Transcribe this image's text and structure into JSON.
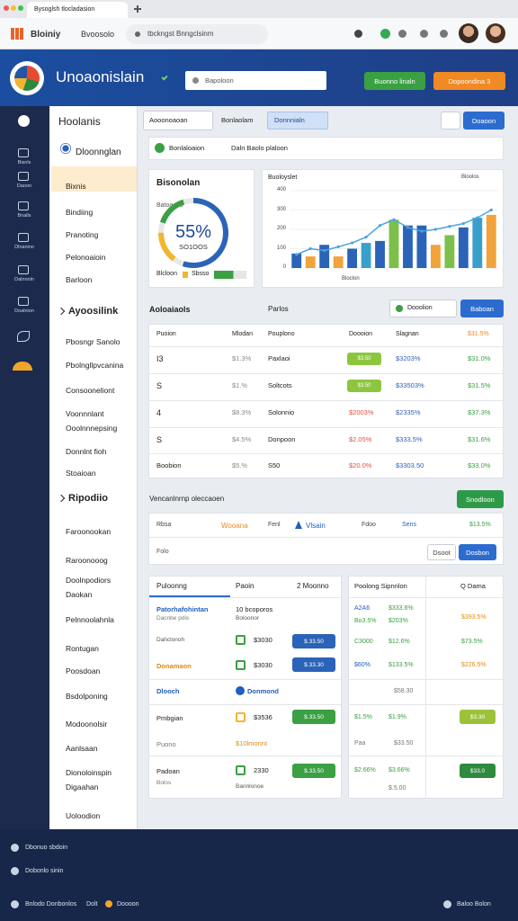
{
  "browser": {
    "tab": "Bysoglsh tlocladasion",
    "brand": "Bloiniy",
    "nav": "Bvoosolo",
    "address": "tbckngst Bnngclsinm"
  },
  "header": {
    "title": "Unoaonislain",
    "search": "Bapoloon",
    "buttons": [
      "Buonno linaln",
      "Dopoondina 3"
    ]
  },
  "rail": [
    "Bisnls",
    "Daoon",
    "Bnalls",
    "Dlnanino",
    "Dalnnnln",
    "Doalnion"
  ],
  "sidebar": {
    "groups": [
      {
        "title": "Hoolanis",
        "items": [
          "Dloonnglan",
          "Bixnis",
          "Bindiing",
          "Pranoting",
          "Pelonoaioin",
          "Barloon"
        ]
      },
      {
        "title": "Ayoosilink",
        "items": [
          "Pbosngr Sanolo",
          "Pbolngllpvcanina",
          "Consooneliont",
          "Voonnnlant Ooolnnnepsing",
          "Donnlnt fioh",
          "Stoaioan"
        ]
      },
      {
        "title": "Ripodiio",
        "items": [
          "Faroonookan",
          "Raroonooog",
          "Doolnpodiors Daokan",
          "Pelnnoolahnla",
          "Rontugan",
          "Poosdoan",
          "Bsdolponing",
          "Modoonolsir",
          "Aanlsaan",
          "Dionoloinspin Digaahan",
          "Uoloodion"
        ]
      }
    ]
  },
  "toolbar": {
    "dropdown": "Aooonoaoan",
    "tabs": [
      "Bonlaolam",
      "Donnnialn"
    ],
    "button": "Doaoon"
  },
  "notice": {
    "label": "Bonlaloaion",
    "text": "Daln Baolo plaloon"
  },
  "gauge": {
    "title": "Bisonolan",
    "label": "Batoaahs",
    "value": 55,
    "value_label": "55%",
    "sub": "SO1OOS",
    "legend": [
      "Blcloon",
      "Sbsso"
    ]
  },
  "chart": {
    "title": "Buoloyslet",
    "legend": "Bloolos",
    "x_label": "Bloclon",
    "ylim": [
      0,
      400
    ],
    "yticks": [
      0,
      100,
      200,
      300,
      400
    ],
    "bars": {
      "values": [
        75,
        60,
        120,
        60,
        100,
        130,
        140,
        250,
        220,
        220,
        120,
        170,
        210,
        260,
        275
      ],
      "colors": [
        "#2b63b8",
        "#f2a33a",
        "#2b63b8",
        "#f2a33a",
        "#2b63b8",
        "#3aa0c9",
        "#2b63b8",
        "#7cc04b",
        "#2b63b8",
        "#2b63b8",
        "#f2a33a",
        "#7cc04b",
        "#2b63b8",
        "#3aa0c9",
        "#f2a33a"
      ]
    },
    "line": {
      "color": "#4aa3df",
      "values": [
        70,
        100,
        90,
        110,
        130,
        160,
        220,
        250,
        210,
        190,
        200,
        215,
        230,
        260,
        300
      ]
    }
  },
  "orders": {
    "title": "Aoloaiaols",
    "tab": "Parlos",
    "dropdown": "Dooolion",
    "button": "Baboan",
    "columns": [
      "Puoion",
      "Mlodan",
      "Pouplono",
      "Doooion",
      "Slagnan",
      "$31.5%"
    ],
    "rows": [
      [
        "I3",
        "$1.3%",
        "Paxlaoi",
        "$3.50",
        "$3203%",
        "$31.0%"
      ],
      [
        "S",
        "$1.%",
        "Soltcots",
        "$3.50",
        "$33503%",
        "$31.5%"
      ],
      [
        "4",
        "$8.3%",
        "Solonnio",
        "$2003%",
        "$2335%",
        "$37.3%"
      ],
      [
        "S",
        "$4.5%",
        "Donpoon",
        "$2.05%",
        "$333.5%",
        "$31.6%"
      ],
      [
        "Boobion",
        "$5.%",
        "S50",
        "$20.0%",
        "$3303.50",
        "$33.0%"
      ]
    ]
  },
  "filters": {
    "title": "Vencanlnrnp oleccaoen",
    "button": "Snodloon",
    "fields": [
      "Rbsa",
      "Wooana",
      "Fenl",
      "Vlsain",
      "Fdoo",
      "Sens",
      "$13.5%"
    ],
    "label": "Folo",
    "buttons": [
      "Dsoot",
      "Dosbon"
    ]
  },
  "summary": {
    "tabs": [
      "Puloonng",
      "Paoin",
      "2 Moonno"
    ],
    "rows": [
      [
        "Patorhafohintan",
        "Dacnbe pdis",
        "10 bcoporos",
        "Boloonor"
      ],
      [
        "Dahclonoh",
        "$3030",
        "$.33.50"
      ],
      [
        "Donamaon",
        "$3030",
        "$.33.30"
      ],
      [
        "Dlooch",
        "Donmond"
      ],
      [
        "Pmbgian",
        "$3536",
        "$.33.50"
      ],
      [
        "Puono",
        "$10lmonnt"
      ],
      [
        "Padoan",
        "Bolos",
        "2330",
        "Bannlonoe",
        "$.33.50"
      ]
    ]
  },
  "pricing": {
    "tabs": [
      "Poolong Sipnnlon",
      "Q Dama"
    ],
    "rows": [
      [
        "A2A6",
        "$333.6%",
        "$393.5%"
      ],
      [
        "Bo3.5%",
        "$203%"
      ],
      [
        "C3000",
        "$12.6%",
        "$73.5%"
      ],
      [
        "$60%",
        "$133.5%",
        "$226.5%"
      ],
      [
        "$58.30"
      ],
      [
        "$1.5%",
        "$1.9%",
        "$3.30"
      ],
      [
        "Paa",
        "$33.50"
      ],
      [
        "$2.66%",
        "$3.66%",
        "$33.0",
        "$.5.00"
      ]
    ]
  },
  "footer": {
    "links": [
      "Dbonuo sbdoin",
      "Dobonlo sinin"
    ],
    "status": [
      "Bnlodo Donbonlos",
      "Dolt",
      "Doooon",
      "Baloo Bolon"
    ]
  }
}
